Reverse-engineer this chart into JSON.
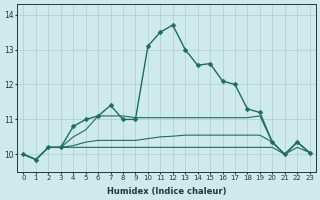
{
  "xlabel": "Humidex (Indice chaleur)",
  "bg_color": "#ceeaea",
  "grid_color": "#add0d0",
  "line_color": "#1e6b60",
  "xlim": [
    -0.5,
    23.5
  ],
  "ylim": [
    9.5,
    14.3
  ],
  "yticks": [
    10,
    11,
    12,
    13,
    14
  ],
  "xticks": [
    0,
    1,
    2,
    3,
    4,
    5,
    6,
    7,
    8,
    9,
    10,
    11,
    12,
    13,
    14,
    15,
    16,
    17,
    18,
    19,
    20,
    21,
    22,
    23
  ],
  "series": [
    {
      "y": [
        10.0,
        9.85,
        10.2,
        10.2,
        10.8,
        11.0,
        11.1,
        11.4,
        11.0,
        11.0,
        13.1,
        13.5,
        13.7,
        13.0,
        12.55,
        12.6,
        12.1,
        12.0,
        11.3,
        11.2,
        10.35,
        10.0,
        10.35,
        10.05
      ],
      "marker": true,
      "lw": 1.0
    },
    {
      "y": [
        10.0,
        9.85,
        10.2,
        10.2,
        10.5,
        10.7,
        11.1,
        11.1,
        11.1,
        11.05,
        11.05,
        11.05,
        11.05,
        11.05,
        11.05,
        11.05,
        11.05,
        11.05,
        11.05,
        11.1,
        10.35,
        10.0,
        10.35,
        10.05
      ],
      "marker": false,
      "lw": 0.8
    },
    {
      "y": [
        10.0,
        9.85,
        10.2,
        10.2,
        10.25,
        10.35,
        10.4,
        10.4,
        10.4,
        10.4,
        10.45,
        10.5,
        10.52,
        10.55,
        10.55,
        10.55,
        10.55,
        10.55,
        10.55,
        10.55,
        10.35,
        10.0,
        10.35,
        10.05
      ],
      "marker": false,
      "lw": 0.8
    },
    {
      "y": [
        10.0,
        9.85,
        10.2,
        10.2,
        10.2,
        10.2,
        10.2,
        10.2,
        10.2,
        10.2,
        10.2,
        10.2,
        10.2,
        10.2,
        10.2,
        10.2,
        10.2,
        10.2,
        10.2,
        10.2,
        10.2,
        10.0,
        10.2,
        10.05
      ],
      "marker": false,
      "lw": 0.8
    }
  ]
}
